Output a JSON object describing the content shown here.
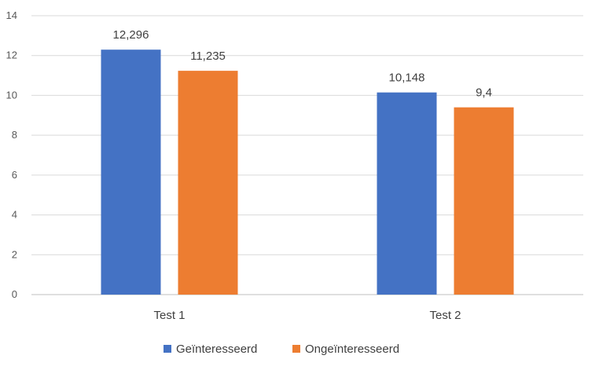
{
  "chart_data": {
    "type": "bar",
    "categories": [
      "Test 1",
      "Test 2"
    ],
    "series": [
      {
        "name": "Geïnteresseerd",
        "values": [
          12.296,
          10.148
        ],
        "labels": [
          "12,296",
          "10,148"
        ]
      },
      {
        "name": "Ongeïnteresseerd",
        "values": [
          11.235,
          9.4
        ],
        "labels": [
          "11,235",
          "9,4"
        ]
      }
    ],
    "title": "",
    "xlabel": "",
    "ylabel": "",
    "ylim": [
      0,
      14
    ],
    "yticks": [
      0,
      2,
      4,
      6,
      8,
      10,
      12,
      14
    ],
    "grid": true,
    "legend_position": "bottom",
    "colors": [
      "#4472c4",
      "#ed7d31"
    ]
  }
}
